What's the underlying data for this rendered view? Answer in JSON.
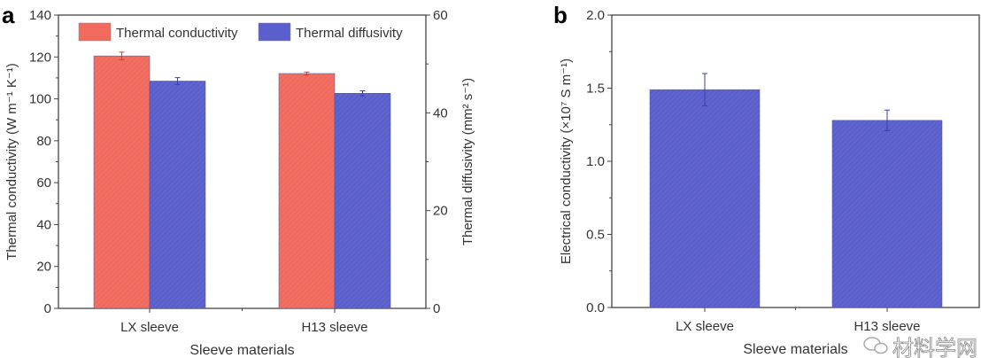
{
  "colors": {
    "conductivity": "#f06a5e",
    "diffusivity": "#5a5fcc",
    "axis": "#444444"
  },
  "watermark": "材料学网",
  "chart_data": [
    {
      "panel": "a",
      "type": "bar",
      "categories": [
        "LX sleeve",
        "H13 sleeve"
      ],
      "xlabel": "Sleeve materials",
      "ylabel": "Thermal conductivity (W m⁻¹ K⁻¹)",
      "y2label": "Thermal diffusivity (mm² s⁻¹)",
      "ylim": [
        0,
        140
      ],
      "yticks": [
        0,
        20,
        40,
        60,
        80,
        100,
        120,
        140
      ],
      "y2lim": [
        0,
        60
      ],
      "y2ticks": [
        0,
        20,
        40,
        60
      ],
      "legend": "top",
      "grid": false,
      "series": [
        {
          "name": "Thermal conductivity",
          "axis": "left",
          "values": [
            120.5,
            112.1
          ],
          "errors": [
            1.8,
            0.7
          ]
        },
        {
          "name": "Thermal diffusivity",
          "axis": "right",
          "values": [
            46.5,
            44.0
          ],
          "errors": [
            0.7,
            0.5
          ]
        }
      ]
    },
    {
      "panel": "b",
      "type": "bar",
      "categories": [
        "LX sleeve",
        "H13 sleeve"
      ],
      "xlabel": "Sleeve materials",
      "ylabel": "Electrical conductivity (×10⁷ S m⁻¹)",
      "ylim": [
        0,
        2.0
      ],
      "yticks": [
        "0.0",
        "0.5",
        "1.0",
        "1.5",
        "2.0"
      ],
      "legend": "none",
      "grid": false,
      "series": [
        {
          "values": [
            1.49,
            1.28
          ],
          "errors": [
            0.11,
            0.07
          ]
        }
      ]
    }
  ]
}
